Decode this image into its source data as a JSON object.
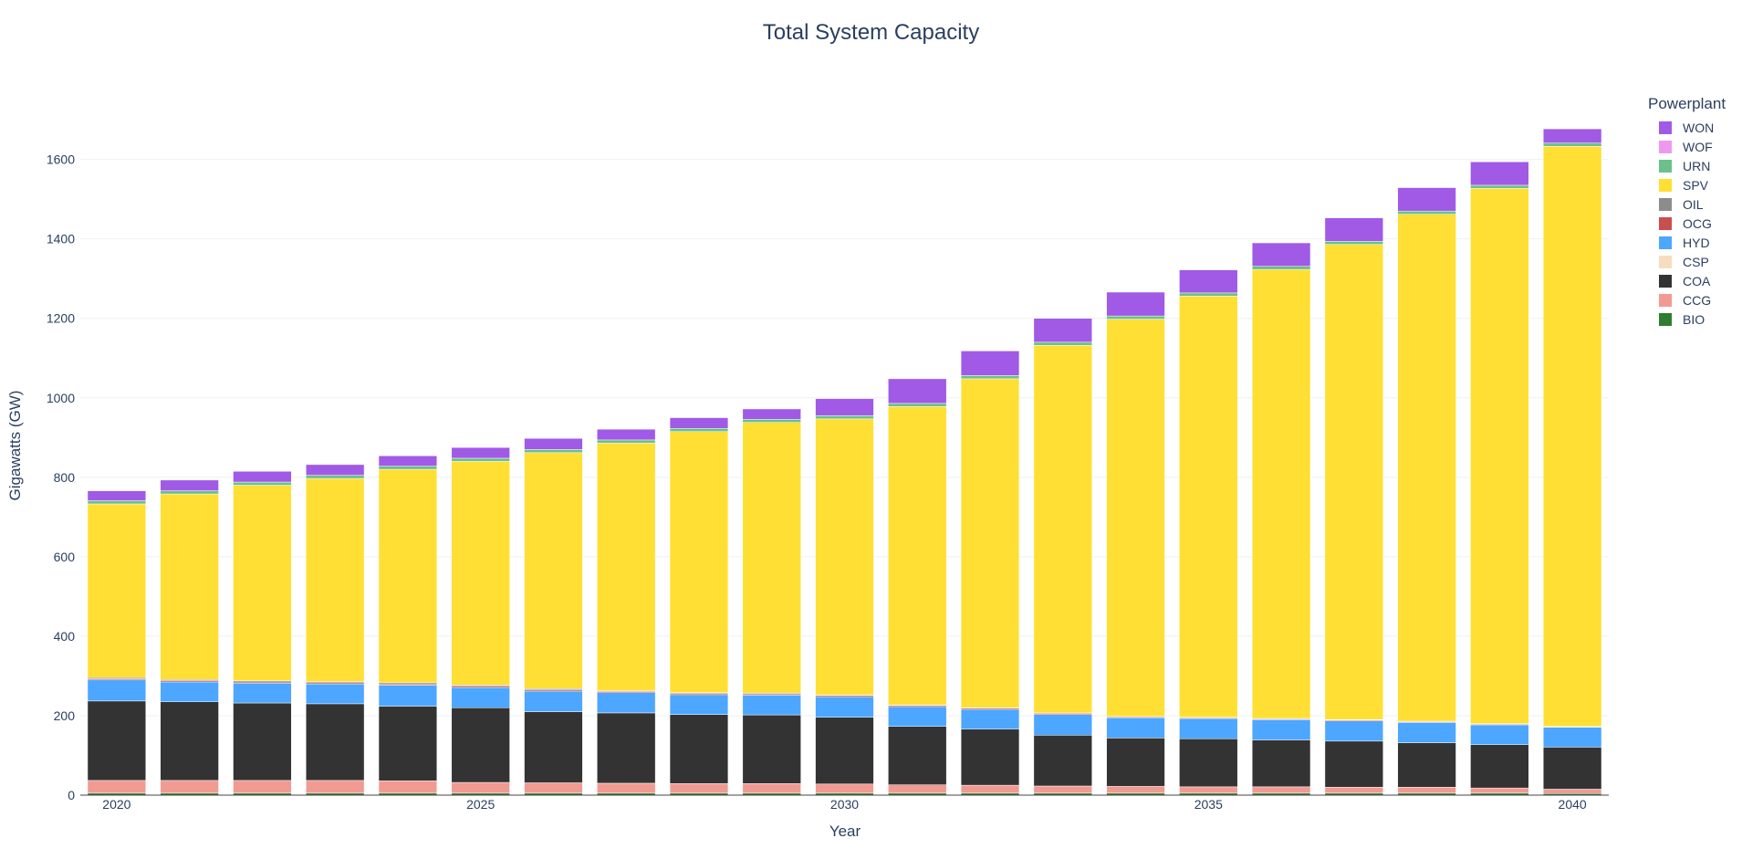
{
  "chart_data": {
    "type": "bar",
    "stacked": true,
    "title": "Total System Capacity",
    "xlabel": "Year",
    "ylabel": "Gigawatts (GW)",
    "ylim": [
      0,
      1760
    ],
    "yticks": [
      0,
      200,
      400,
      600,
      800,
      1000,
      1200,
      1400,
      1600
    ],
    "xticks": [
      2020,
      2025,
      2030,
      2035,
      2040
    ],
    "legend_title": "Powerplant",
    "legend_position": "top-right",
    "categories": [
      2020,
      2021,
      2022,
      2023,
      2024,
      2025,
      2026,
      2027,
      2028,
      2029,
      2030,
      2031,
      2032,
      2033,
      2034,
      2035,
      2036,
      2037,
      2038,
      2039,
      2040
    ],
    "series": [
      {
        "name": "BIO",
        "color": "#2e7d32",
        "values": [
          5,
          5,
          5,
          5,
          5,
          5,
          5,
          5,
          5,
          5,
          5,
          5,
          5,
          5,
          5,
          5,
          5,
          5,
          5,
          5,
          4
        ]
      },
      {
        "name": "CCG",
        "color": "#f19a92",
        "values": [
          32,
          32,
          32,
          32,
          31,
          27,
          26,
          25,
          24,
          24,
          23,
          21,
          20,
          18,
          17,
          16,
          16,
          15,
          15,
          13,
          11
        ]
      },
      {
        "name": "COA",
        "color": "#333333",
        "values": [
          200,
          198,
          195,
          193,
          188,
          188,
          179,
          177,
          174,
          173,
          168,
          147,
          141,
          128,
          122,
          121,
          118,
          116,
          112,
          109,
          106
        ]
      },
      {
        "name": "CSP",
        "color": "#f7dcc0",
        "values": [
          0,
          0,
          0,
          0,
          0,
          0,
          0,
          0,
          0,
          0,
          0,
          0,
          0,
          0,
          0,
          0,
          0,
          0,
          0,
          0,
          0
        ]
      },
      {
        "name": "HYD",
        "color": "#4da6ff",
        "values": [
          53,
          50,
          50,
          50,
          53,
          51,
          52,
          51,
          50,
          50,
          52,
          50,
          50,
          52,
          51,
          51,
          51,
          51,
          51,
          50,
          50
        ]
      },
      {
        "name": "OCG",
        "color": "#c94f4f",
        "values": [
          3,
          3,
          3,
          3,
          3,
          3,
          3,
          3,
          3,
          3,
          3,
          3,
          3,
          3,
          2,
          2,
          2,
          2,
          2,
          2,
          1
        ]
      },
      {
        "name": "OIL",
        "color": "#8c8c8c",
        "values": [
          3,
          3,
          3,
          3,
          3,
          3,
          3,
          2,
          2,
          2,
          1,
          1,
          1,
          1,
          1,
          1,
          1,
          1,
          1,
          1,
          1
        ]
      },
      {
        "name": "SPV",
        "color": "#ffdf33",
        "values": [
          437,
          467,
          492,
          511,
          537,
          563,
          594,
          623,
          657,
          681,
          695,
          751,
          828,
          925,
          1000,
          1060,
          1130,
          1196,
          1276,
          1347,
          1460
        ]
      },
      {
        "name": "URN",
        "color": "#6cc08b",
        "values": [
          8,
          8,
          8,
          8,
          8,
          8,
          8,
          8,
          8,
          8,
          8,
          8,
          8,
          8,
          8,
          8,
          8,
          8,
          8,
          8,
          8
        ]
      },
      {
        "name": "WOF",
        "color": "#ee99ee",
        "values": [
          0,
          0,
          0,
          0,
          0,
          0,
          0,
          0,
          0,
          0,
          0,
          0,
          0,
          0,
          0,
          0,
          0,
          0,
          0,
          0,
          0
        ]
      },
      {
        "name": "WON",
        "color": "#a05ae6",
        "values": [
          25,
          27,
          27,
          27,
          26,
          27,
          28,
          27,
          27,
          26,
          43,
          62,
          62,
          60,
          60,
          58,
          59,
          59,
          59,
          59,
          36
        ]
      }
    ]
  }
}
